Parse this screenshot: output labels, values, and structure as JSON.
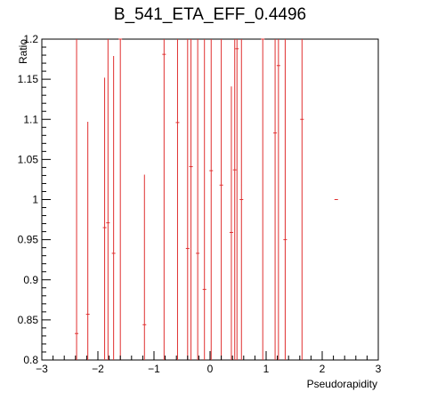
{
  "chart_data": {
    "type": "scatter",
    "title": "B_541_ETA_EFF_0.4496",
    "xlabel": "Pseudorapidity",
    "ylabel": "Ratio",
    "xlim": [
      -3,
      3
    ],
    "ylim": [
      0.8,
      1.2
    ],
    "x_ticks": [
      -3,
      -2,
      -1,
      0,
      1,
      2,
      3
    ],
    "x_tick_labels": [
      "−3",
      "−2",
      "−1",
      "0",
      "1",
      "2",
      "3"
    ],
    "y_ticks": [
      0.8,
      0.85,
      0.9,
      0.95,
      1.0,
      1.05,
      1.1,
      1.15,
      1.2
    ],
    "y_tick_labels": [
      "0.8",
      "0.85",
      "0.9",
      "0.95",
      "1",
      "1.05",
      "1.1",
      "1.15",
      "1.2"
    ],
    "marker_color": "#e03030",
    "grid": false,
    "points": [
      {
        "x": -2.38,
        "y": 0.833,
        "lo": 0.8,
        "hi": 1.2
      },
      {
        "x": -2.18,
        "y": 0.857,
        "lo": 0.8,
        "hi": 1.097
      },
      {
        "x": -1.88,
        "y": 0.965,
        "lo": 0.8,
        "hi": 1.152
      },
      {
        "x": -1.82,
        "y": 0.971,
        "lo": 0.8,
        "hi": 1.2
      },
      {
        "x": -1.72,
        "y": 0.933,
        "lo": 0.8,
        "hi": 1.179
      },
      {
        "x": -1.6,
        "y": 1.2,
        "lo": 0.8,
        "hi": 1.2
      },
      {
        "x": -1.17,
        "y": 0.844,
        "lo": 0.8,
        "hi": 1.031
      },
      {
        "x": -0.82,
        "y": 1.181,
        "lo": 0.8,
        "hi": 1.2
      },
      {
        "x": -0.58,
        "y": 1.096,
        "lo": 0.8,
        "hi": 1.2
      },
      {
        "x": -0.4,
        "y": 0.939,
        "lo": 0.8,
        "hi": 1.2
      },
      {
        "x": -0.34,
        "y": 1.041,
        "lo": 0.8,
        "hi": 1.2
      },
      {
        "x": -0.22,
        "y": 0.933,
        "lo": 0.8,
        "hi": 1.2
      },
      {
        "x": -0.1,
        "y": 0.888,
        "lo": 0.8,
        "hi": 1.2
      },
      {
        "x": 0.02,
        "y": 1.036,
        "lo": 0.8,
        "hi": 1.2
      },
      {
        "x": 0.2,
        "y": 1.018,
        "lo": 0.8,
        "hi": 1.2
      },
      {
        "x": 0.38,
        "y": 0.959,
        "lo": 0.8,
        "hi": 1.141
      },
      {
        "x": 0.44,
        "y": 1.037,
        "lo": 0.8,
        "hi": 1.2
      },
      {
        "x": 0.48,
        "y": 1.188,
        "lo": 0.8,
        "hi": 1.2
      },
      {
        "x": 0.56,
        "y": 1.0,
        "lo": 0.8,
        "hi": 1.2
      },
      {
        "x": 0.94,
        "y": 1.2,
        "lo": 0.8,
        "hi": 1.2
      },
      {
        "x": 1.16,
        "y": 1.083,
        "lo": 0.8,
        "hi": 1.2
      },
      {
        "x": 1.22,
        "y": 1.167,
        "lo": 0.8,
        "hi": 1.2
      },
      {
        "x": 1.34,
        "y": 0.95,
        "lo": 0.8,
        "hi": 1.2
      },
      {
        "x": 1.64,
        "y": 1.1,
        "lo": 0.8,
        "hi": 1.2
      },
      {
        "x": 2.25,
        "y": 1.0,
        "lo": 1.0,
        "hi": 1.0
      }
    ]
  }
}
